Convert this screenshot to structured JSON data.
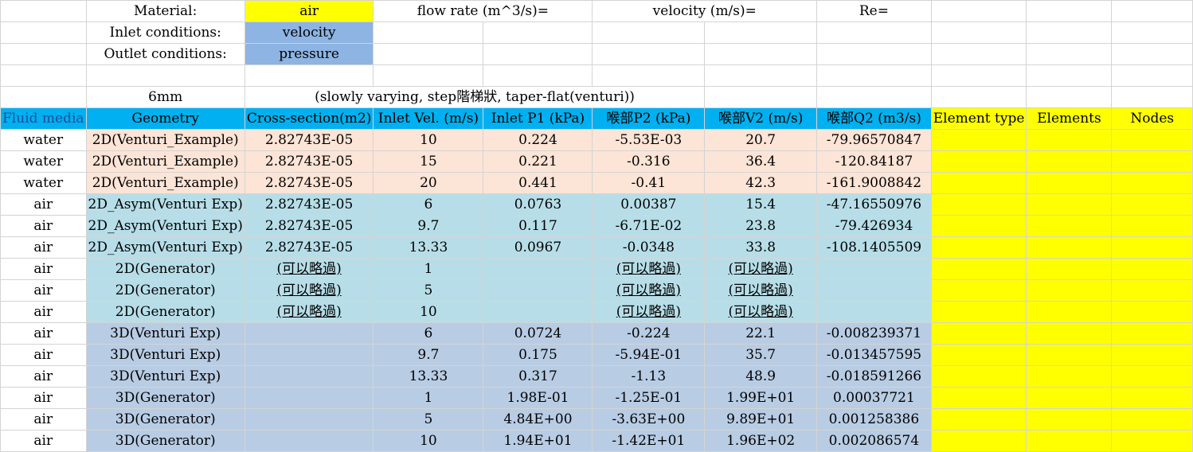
{
  "top": {
    "material_label": "Material:",
    "material_value": "air",
    "flow_rate_label": "flow rate (m^3/s)=",
    "velocity_label": "velocity (m/s)=",
    "re_label": "Re=",
    "inlet_label": "Inlet conditions:",
    "inlet_value": "velocity",
    "outlet_label": "Outlet conditions:",
    "outlet_value": "pressure",
    "size_label": "6mm",
    "note": "(slowly varying, step階梯狀, taper-flat(venturi))"
  },
  "headers": [
    "Fluid media",
    "Geometry",
    "Cross-section(m2)",
    "Inlet Vel. (m/s)",
    "Inlet P1 (kPa)",
    "喉部P2 (kPa)",
    "喉部V2 (m/s)",
    "喉部Q2 (m3/s)",
    "Element type",
    "Elements",
    "Nodes"
  ],
  "rows": [
    {
      "media": "water",
      "geometry": "2D(Venturi_Example)",
      "cross": "2.82743E-05",
      "vel": "10",
      "p1": "0.224",
      "p2": "-5.53E-03",
      "v2": "20.7",
      "q2": "-79.96570847",
      "band": "peach"
    },
    {
      "media": "water",
      "geometry": "2D(Venturi_Example)",
      "cross": "2.82743E-05",
      "vel": "15",
      "p1": "0.221",
      "p2": "-0.316",
      "v2": "36.4",
      "q2": "-120.84187",
      "band": "peach"
    },
    {
      "media": "water",
      "geometry": "2D(Venturi_Example)",
      "cross": "2.82743E-05",
      "vel": "20",
      "p1": "0.441",
      "p2": "-0.41",
      "v2": "42.3",
      "q2": "-161.9008842",
      "band": "peach"
    },
    {
      "media": "air",
      "geometry": "2D_Asym(Venturi Exp)",
      "cross": "2.82743E-05",
      "vel": "6",
      "p1": "0.0763",
      "p2": "0.00387",
      "v2": "15.4",
      "q2": "-47.16550976",
      "band": "teal"
    },
    {
      "media": "air",
      "geometry": "2D_Asym(Venturi Exp)",
      "cross": "2.82743E-05",
      "vel": "9.7",
      "p1": "0.117",
      "p2": "-6.71E-02",
      "v2": "23.8",
      "q2": "-79.426934",
      "band": "teal",
      "velred": true
    },
    {
      "media": "air",
      "geometry": "2D_Asym(Venturi Exp)",
      "cross": "2.82743E-05",
      "vel": "13.33",
      "p1": "0.0967",
      "p2": "-0.0348",
      "v2": "33.8",
      "q2": "-108.1405509",
      "band": "teal"
    },
    {
      "media": "air",
      "geometry": "2D(Generator)",
      "cross": "(可以略過)",
      "vel": "1",
      "p1": "",
      "p2": "(可以略過)",
      "v2": "(可以略過)",
      "q2": "",
      "band": "teal",
      "links": true
    },
    {
      "media": "air",
      "geometry": "2D(Generator)",
      "cross": "(可以略過)",
      "vel": "5",
      "p1": "",
      "p2": "(可以略過)",
      "v2": "(可以略過)",
      "q2": "",
      "band": "teal",
      "links": true
    },
    {
      "media": "air",
      "geometry": "2D(Generator)",
      "cross": "(可以略過)",
      "vel": "10",
      "p1": "",
      "p2": "(可以略過)",
      "v2": "(可以略過)",
      "q2": "",
      "band": "teal",
      "links": true
    },
    {
      "media": "air",
      "geometry": "3D(Venturi Exp)",
      "cross": "",
      "vel": "6",
      "p1": "0.0724",
      "p2": "-0.224",
      "v2": "22.1",
      "q2": "-0.008239371",
      "band": "slate"
    },
    {
      "media": "air",
      "geometry": "3D(Venturi Exp)",
      "cross": "",
      "vel": "9.7",
      "p1": "0.175",
      "p2": "-5.94E-01",
      "v2": "35.7",
      "q2": "-0.013457595",
      "band": "slate",
      "velred": true
    },
    {
      "media": "air",
      "geometry": "3D(Venturi Exp)",
      "cross": "",
      "vel": "13.33",
      "p1": "0.317",
      "p2": "-1.13",
      "v2": "48.9",
      "q2": "-0.018591266",
      "band": "slate"
    },
    {
      "media": "air",
      "geometry": "3D(Generator)",
      "cross": "",
      "vel": "1",
      "p1": "1.98E-01",
      "p2": "-1.25E-01",
      "v2": "1.99E+01",
      "q2": "0.00037721",
      "band": "slate"
    },
    {
      "media": "air",
      "geometry": "3D(Generator)",
      "cross": "",
      "vel": "5",
      "p1": "4.84E+00",
      "p2": "-3.63E+00",
      "v2": "9.89E+01",
      "q2": "0.001258386",
      "band": "slate"
    },
    {
      "media": "air",
      "geometry": "3D(Generator)",
      "cross": "",
      "vel": "10",
      "p1": "1.94E+01",
      "p2": "-1.42E+01",
      "v2": "1.96E+02",
      "q2": "0.002086574",
      "band": "slate"
    }
  ]
}
